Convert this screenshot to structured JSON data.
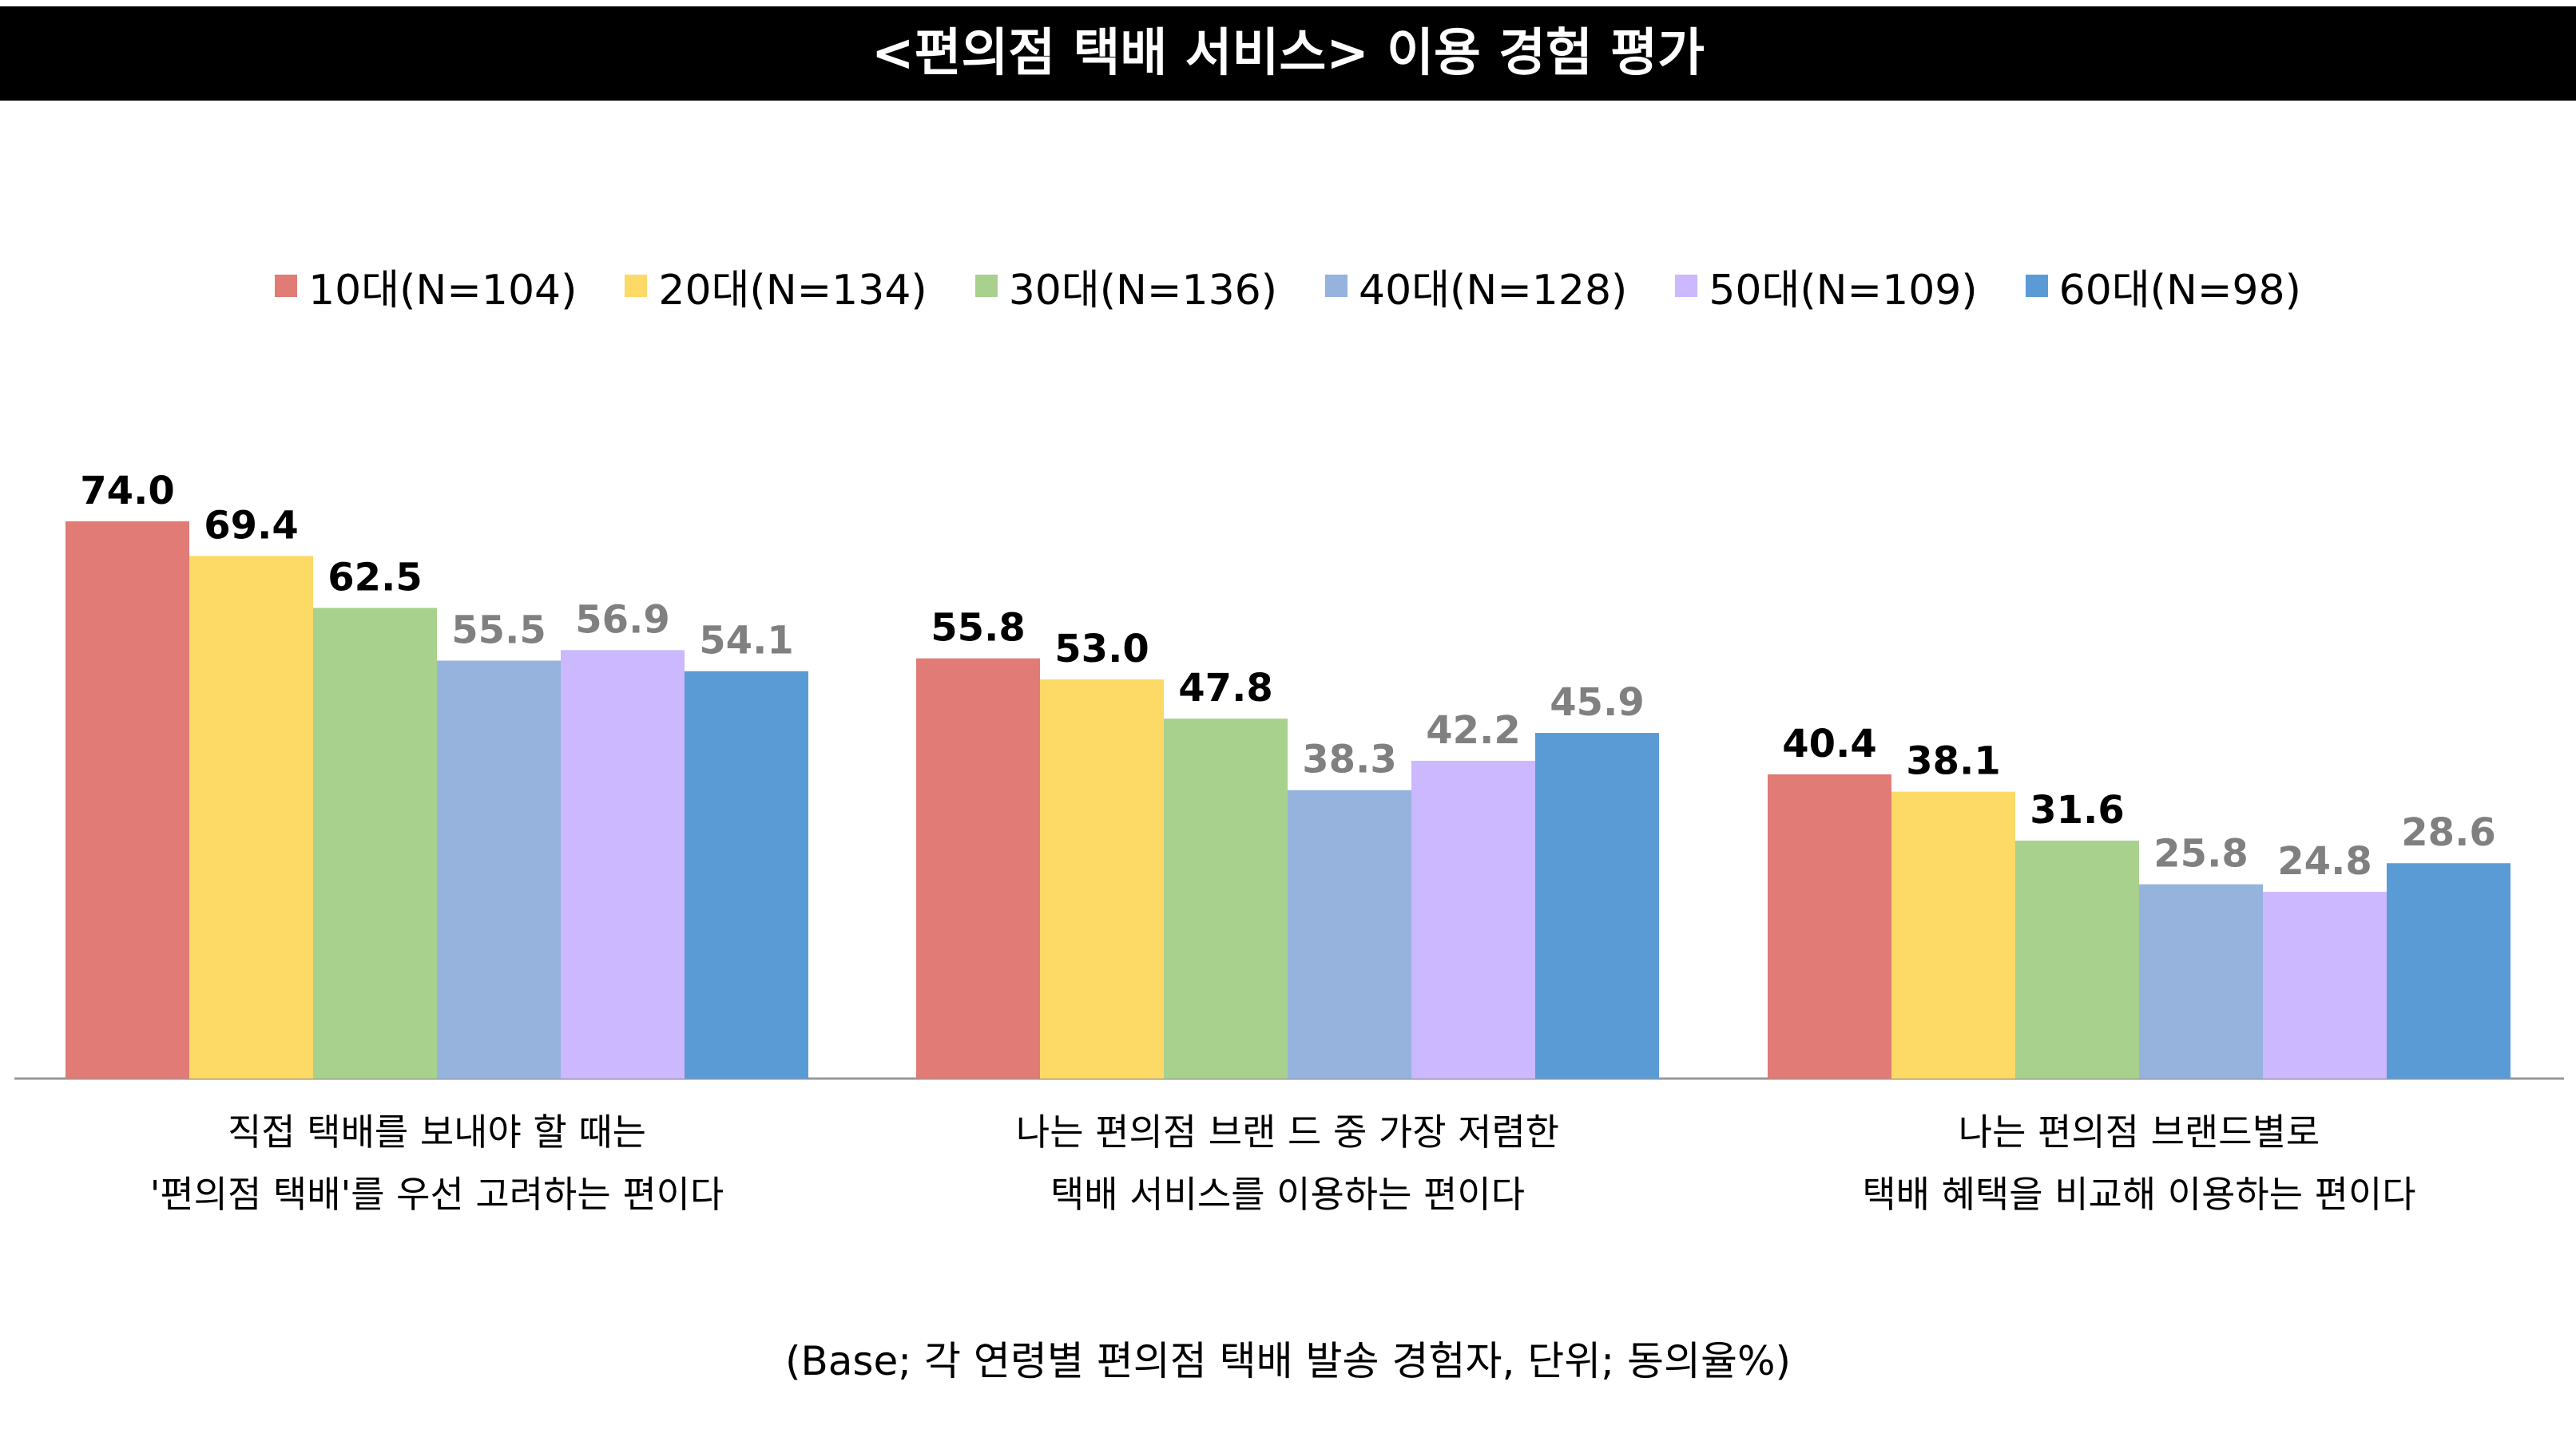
{
  "title": "<편의점 택배 서비스> 이용 경험 평가",
  "note": "(Base; 각 연령별 편의점 택배 발송 경험자, 단위; 동의율%)",
  "chart_data": {
    "type": "bar",
    "categories": [
      [
        "직접 택배를 보내야 할 때는",
        "'편의점 택배'를 우선 고려하는 편이다"
      ],
      [
        "나는 편의점 브랜 드 중 가장 저렴한",
        "택배 서비스를 이용하는 편이다"
      ],
      [
        "나는 편의점 브랜드별로",
        "택배 혜택을 비교해 이용하는 편이다"
      ]
    ],
    "series": [
      {
        "name": "10대(N=104)",
        "color": "#E07B76",
        "values": [
          74.0,
          55.8,
          40.4
        ],
        "label_color": "#000000"
      },
      {
        "name": "20대(N=134)",
        "color": "#FDD966",
        "values": [
          69.4,
          53.0,
          38.1
        ],
        "label_color": "#000000"
      },
      {
        "name": "30대(N=136)",
        "color": "#A9D18E",
        "values": [
          62.5,
          47.8,
          31.6
        ],
        "label_color": "#000000"
      },
      {
        "name": "40대(N=128)",
        "color": "#95B3DC",
        "values": [
          55.5,
          38.3,
          25.8
        ],
        "label_color": "#808080"
      },
      {
        "name": "50대(N=109)",
        "color": "#CCB8FF",
        "values": [
          56.9,
          42.2,
          24.8
        ],
        "label_color": "#808080"
      },
      {
        "name": "60대(N=98)",
        "color": "#5B9BD5",
        "values": [
          54.1,
          45.9,
          28.6
        ],
        "label_color": "#808080"
      }
    ],
    "ylim": [
      0,
      80
    ],
    "legend": "top",
    "grid": false
  }
}
